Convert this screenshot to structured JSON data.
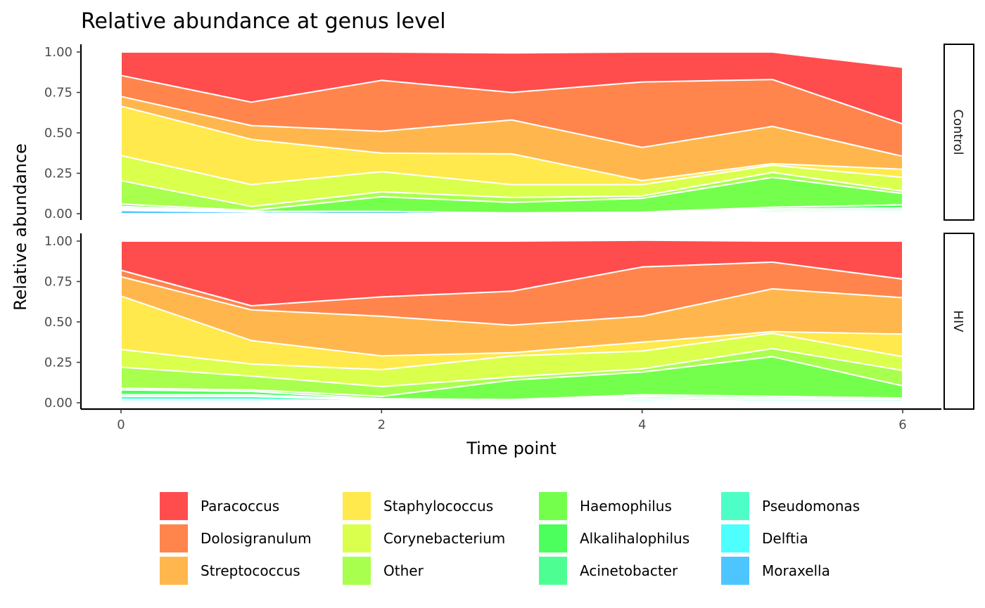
{
  "chart_data": {
    "type": "area",
    "stacked": true,
    "title": "Relative abundance at genus level",
    "xlabel": "Time point",
    "ylabel": "Relative abundance",
    "xlim": [
      0,
      6
    ],
    "ylim": [
      0,
      1
    ],
    "x_ticks": [
      "0",
      "2",
      "4",
      "6"
    ],
    "y_ticks": [
      "0.00",
      "0.25",
      "0.50",
      "0.75",
      "1.00"
    ],
    "legend_position": "bottom",
    "x": [
      0,
      1,
      2,
      3,
      4,
      5,
      6
    ],
    "series_order_note_hidden": false,
    "legend": [
      {
        "name": "Paracoccus",
        "color": "#FF4D4D"
      },
      {
        "name": "Dolosigranulum",
        "color": "#FF854D"
      },
      {
        "name": "Streptococcus",
        "color": "#FFB74D"
      },
      {
        "name": "Staphylococcus",
        "color": "#FFE94D"
      },
      {
        "name": "Corynebacterium",
        "color": "#DBFF4D"
      },
      {
        "name": "Other",
        "color": "#A8FF4D"
      },
      {
        "name": "Haemophilus",
        "color": "#74FF4D"
      },
      {
        "name": "Alkalihalophilus",
        "color": "#4DFF5C"
      },
      {
        "name": "Acinetobacter",
        "color": "#4DFF93"
      },
      {
        "name": "Pseudomonas",
        "color": "#4DFFC6"
      },
      {
        "name": "Delftia",
        "color": "#4DFFFF"
      },
      {
        "name": "Moraxella",
        "color": "#4DC6FF"
      }
    ],
    "panels": [
      {
        "label": "Control",
        "series": [
          {
            "name": "Moraxella",
            "values": [
              0.02,
              0.01,
              0.015,
              0.005,
              0.01,
              0.005,
              0.005
            ]
          },
          {
            "name": "Delftia",
            "values": [
              0.005,
              0.0,
              0.0,
              0.0,
              0.0,
              0.005,
              0.01
            ]
          },
          {
            "name": "Pseudomonas",
            "values": [
              0.005,
              0.0,
              0.0,
              0.0,
              0.0,
              0.01,
              0.01
            ]
          },
          {
            "name": "Acinetobacter",
            "values": [
              0.005,
              0.005,
              0.0,
              0.0,
              0.0,
              0.01,
              0.01
            ]
          },
          {
            "name": "Alkalihalophilus",
            "values": [
              0.01,
              0.0,
              0.0,
              0.0,
              0.0,
              0.01,
              0.02
            ]
          },
          {
            "name": "Haemophilus",
            "values": [
              0.015,
              0.005,
              0.09,
              0.065,
              0.085,
              0.185,
              0.07
            ]
          },
          {
            "name": "Other",
            "values": [
              0.145,
              0.025,
              0.03,
              0.03,
              0.015,
              0.03,
              0.015
            ]
          },
          {
            "name": "Corynebacterium",
            "values": [
              0.155,
              0.135,
              0.125,
              0.08,
              0.07,
              0.045,
              0.085
            ]
          },
          {
            "name": "Staphylococcus",
            "values": [
              0.305,
              0.28,
              0.115,
              0.19,
              0.025,
              0.01,
              0.05
            ]
          },
          {
            "name": "Streptococcus",
            "values": [
              0.06,
              0.085,
              0.135,
              0.21,
              0.205,
              0.23,
              0.08
            ]
          },
          {
            "name": "Dolosigranulum",
            "values": [
              0.13,
              0.145,
              0.315,
              0.17,
              0.405,
              0.29,
              0.2
            ]
          },
          {
            "name": "Paracoccus",
            "values": [
              0.145,
              0.31,
              0.175,
              0.245,
              0.185,
              0.17,
              0.35
            ]
          }
        ]
      },
      {
        "label": "HIV",
        "series": [
          {
            "name": "Moraxella",
            "values": [
              0.01,
              0.01,
              0.005,
              0.005,
              0.01,
              0.005,
              0.005
            ]
          },
          {
            "name": "Delftia",
            "values": [
              0.01,
              0.01,
              0.005,
              0.005,
              0.01,
              0.005,
              0.005
            ]
          },
          {
            "name": "Pseudomonas",
            "values": [
              0.02,
              0.02,
              0.005,
              0.005,
              0.01,
              0.01,
              0.01
            ]
          },
          {
            "name": "Acinetobacter",
            "values": [
              0.01,
              0.01,
              0.005,
              0.005,
              0.01,
              0.01,
              0.005
            ]
          },
          {
            "name": "Alkalihalophilus",
            "values": [
              0.03,
              0.02,
              0.005,
              0.0,
              0.01,
              0.01,
              0.005
            ]
          },
          {
            "name": "Haemophilus",
            "values": [
              0.01,
              0.01,
              0.015,
              0.12,
              0.14,
              0.245,
              0.075
            ]
          },
          {
            "name": "Other",
            "values": [
              0.13,
              0.085,
              0.06,
              0.02,
              0.02,
              0.05,
              0.095
            ]
          },
          {
            "name": "Corynebacterium",
            "values": [
              0.11,
              0.075,
              0.105,
              0.13,
              0.11,
              0.095,
              0.085
            ]
          },
          {
            "name": "Staphylococcus",
            "values": [
              0.33,
              0.145,
              0.085,
              0.02,
              0.055,
              0.01,
              0.14
            ]
          },
          {
            "name": "Streptococcus",
            "values": [
              0.12,
              0.19,
              0.245,
              0.17,
              0.16,
              0.265,
              0.225
            ]
          },
          {
            "name": "Dolosigranulum",
            "values": [
              0.04,
              0.025,
              0.12,
              0.21,
              0.305,
              0.165,
              0.115
            ]
          },
          {
            "name": "Paracoccus",
            "values": [
              0.18,
              0.4,
              0.345,
              0.31,
              0.165,
              0.13,
              0.235
            ]
          }
        ]
      }
    ]
  }
}
